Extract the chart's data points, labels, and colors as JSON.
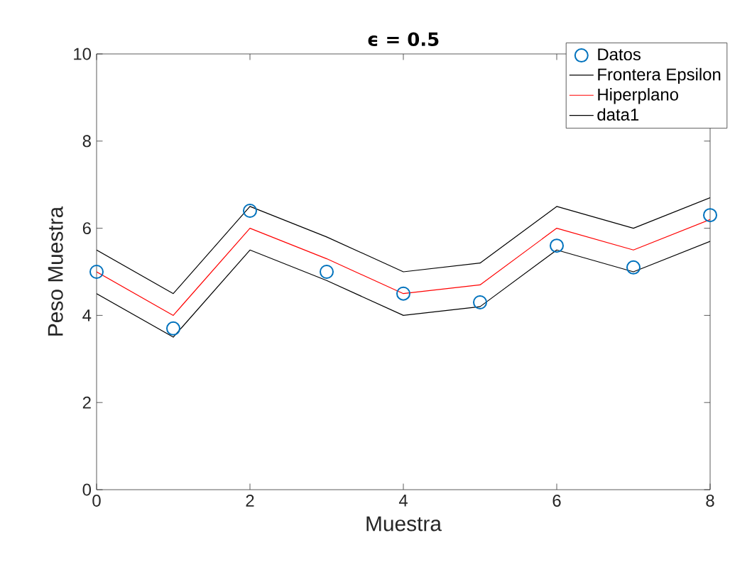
{
  "chart_data": {
    "type": "line",
    "title": "ϵ = 0.5",
    "xlabel": "Muestra",
    "ylabel": "Peso Muestra",
    "x": [
      0,
      1,
      2,
      3,
      4,
      5,
      6,
      7,
      8
    ],
    "series": [
      {
        "name": "Datos",
        "type": "scatter",
        "marker": "circle",
        "color": "#0072bd",
        "values": [
          5.0,
          3.7,
          6.4,
          5.0,
          4.5,
          4.3,
          5.6,
          5.1,
          6.3
        ]
      },
      {
        "name": "Frontera Epsilon",
        "color": "#000000",
        "values": [
          5.5,
          4.5,
          6.5,
          5.8,
          5.0,
          5.2,
          6.5,
          6.0,
          6.7
        ]
      },
      {
        "name": "Hiperplano",
        "color": "#ff0000",
        "values": [
          5.0,
          4.0,
          6.0,
          5.3,
          4.5,
          4.7,
          6.0,
          5.5,
          6.2
        ]
      },
      {
        "name": "data1",
        "color": "#000000",
        "values": [
          4.5,
          3.5,
          5.5,
          4.8,
          4.0,
          4.2,
          5.5,
          5.0,
          5.7
        ]
      }
    ],
    "xlim": [
      0,
      8
    ],
    "ylim": [
      0,
      10
    ],
    "xticks": [
      0,
      2,
      4,
      6,
      8
    ],
    "yticks": [
      0,
      2,
      4,
      6,
      8,
      10
    ],
    "grid": false,
    "legend": "top right"
  }
}
